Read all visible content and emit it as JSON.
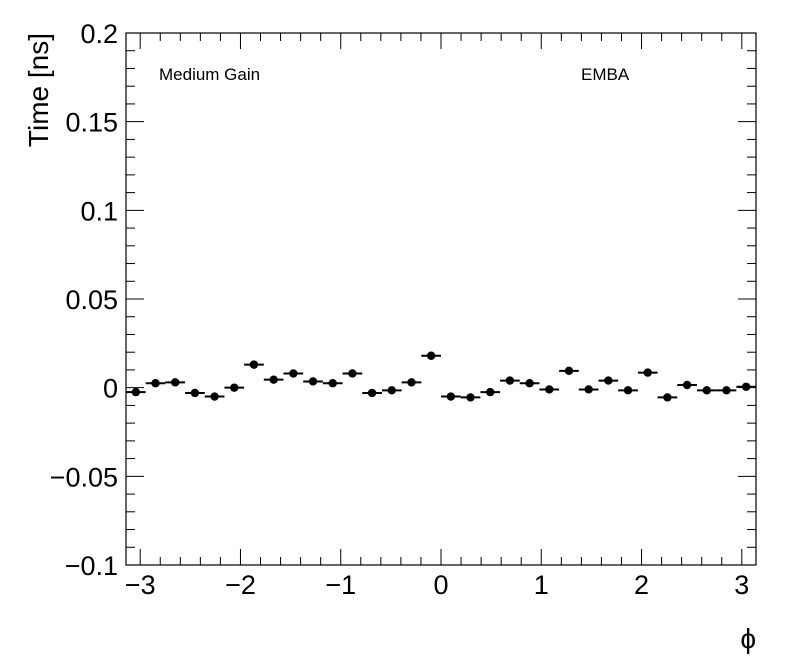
{
  "chart_data": {
    "type": "scatter",
    "annotations": {
      "left": "Medium Gain",
      "right": "EMBA"
    },
    "xlabel": "ϕ",
    "ylabel": "Time [ns]",
    "xlim": [
      -3.1416,
      3.1416
    ],
    "ylim": [
      -0.1,
      0.2
    ],
    "x_ticks": [
      -3,
      -2,
      -1,
      0,
      1,
      2,
      3
    ],
    "x_tick_labels": [
      "−3",
      "−2",
      "−1",
      "0",
      "1",
      "2",
      "3"
    ],
    "y_ticks": [
      -0.1,
      -0.05,
      0,
      0.05,
      0.1,
      0.15,
      0.2
    ],
    "y_tick_labels": [
      "−0.1",
      "−0.05",
      "0",
      "0.05",
      "0.1",
      "0.15",
      "0.2"
    ],
    "bin_width": 0.19635,
    "x": [
      -3.0434,
      -2.8471,
      -2.6507,
      -2.4544,
      -2.258,
      -2.0617,
      -1.8653,
      -1.669,
      -1.4726,
      -1.2763,
      -1.0799,
      -0.8836,
      -0.6872,
      -0.4909,
      -0.2945,
      -0.0982,
      0.0982,
      0.2945,
      0.4909,
      0.6872,
      0.8836,
      1.0799,
      1.2763,
      1.4726,
      1.669,
      1.8653,
      2.0617,
      2.258,
      2.4544,
      2.6507,
      2.8471,
      3.0434
    ],
    "y": [
      -0.0025,
      0.0025,
      0.003,
      -0.003,
      -0.005,
      0.0,
      0.013,
      0.0045,
      0.008,
      0.0035,
      0.0025,
      0.008,
      -0.003,
      -0.0015,
      0.003,
      0.018,
      -0.005,
      -0.0055,
      -0.0025,
      0.004,
      0.0025,
      -0.001,
      0.0095,
      -0.001,
      0.004,
      -0.0015,
      0.0085,
      -0.0055,
      0.0015,
      -0.0015,
      -0.0015,
      0.0005
    ]
  }
}
